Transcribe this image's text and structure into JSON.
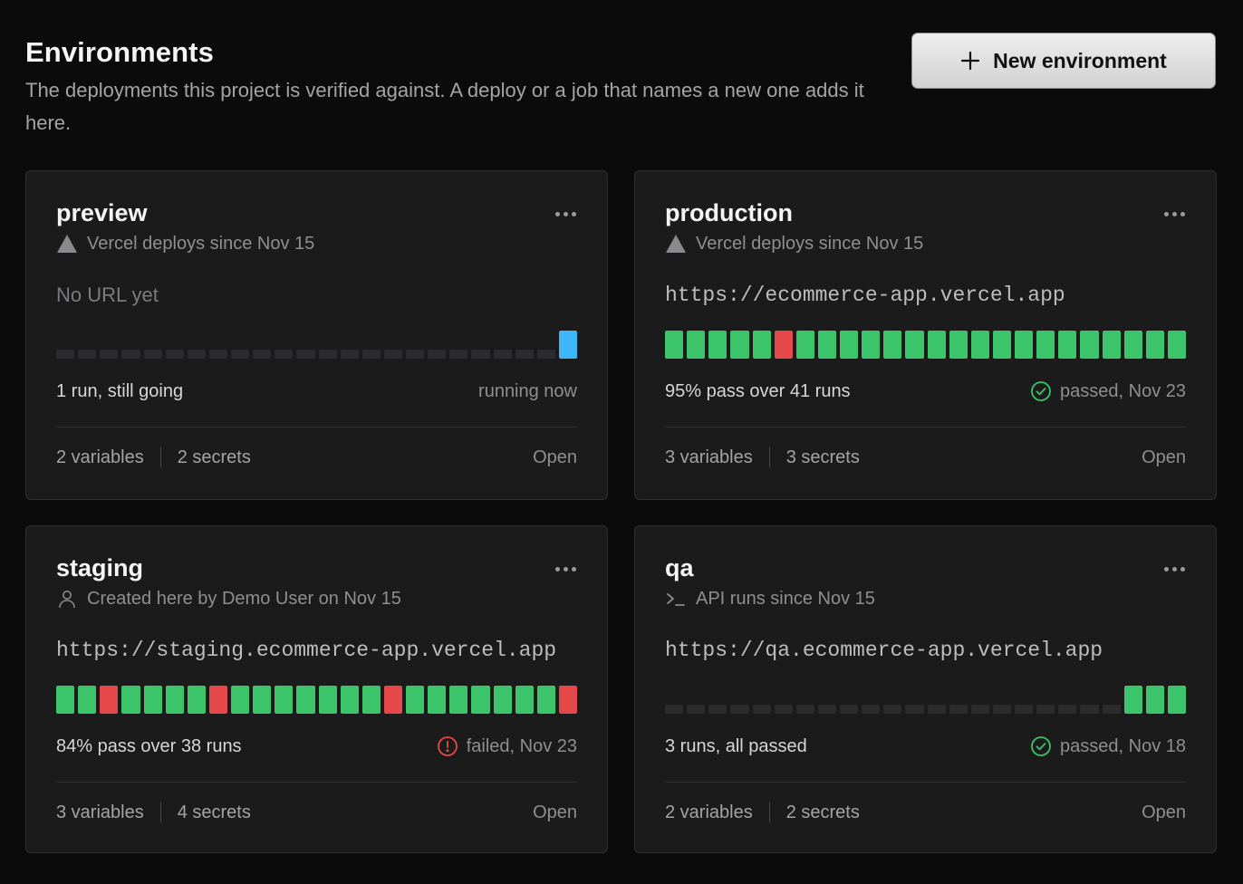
{
  "header": {
    "title": "Environments",
    "description": "The deployments this project is verified against. A deploy or a job that names a new one adds it here.",
    "new_button_label": "New environment"
  },
  "colors": {
    "pass": "#3cc46a",
    "fail": "#e54848",
    "running": "#3fb6f7",
    "empty": "#2c2c2e"
  },
  "environments": [
    {
      "name": "preview",
      "source_icon": "triangle-icon",
      "source_text": "Vercel deploys since Nov 15",
      "url": "No URL yet",
      "has_url": false,
      "runs": [
        "empty",
        "empty",
        "empty",
        "empty",
        "empty",
        "empty",
        "empty",
        "empty",
        "empty",
        "empty",
        "empty",
        "empty",
        "empty",
        "empty",
        "empty",
        "empty",
        "empty",
        "empty",
        "empty",
        "empty",
        "empty",
        "empty",
        "empty",
        "running"
      ],
      "summary": "1 run, still going",
      "status_icon": "",
      "status_text": "running now",
      "variables": "2 variables",
      "secrets": "2 secrets",
      "open_label": "Open"
    },
    {
      "name": "production",
      "source_icon": "triangle-icon",
      "source_text": "Vercel deploys since Nov 15",
      "url": "https://ecommerce-app.vercel.app",
      "has_url": true,
      "runs": [
        "pass",
        "pass",
        "pass",
        "pass",
        "pass",
        "fail",
        "pass",
        "pass",
        "pass",
        "pass",
        "pass",
        "pass",
        "pass",
        "pass",
        "pass",
        "pass",
        "pass",
        "pass",
        "pass",
        "pass",
        "pass",
        "pass",
        "pass",
        "pass"
      ],
      "summary": "95% pass over 41 runs",
      "status_icon": "check-circle-icon",
      "status_text": "passed, Nov 23",
      "variables": "3 variables",
      "secrets": "3 secrets",
      "open_label": "Open"
    },
    {
      "name": "staging",
      "source_icon": "user-icon",
      "source_text": "Created here by Demo User on Nov 15",
      "url": "https://staging.ecommerce-app.vercel.app",
      "has_url": true,
      "runs": [
        "pass",
        "pass",
        "fail",
        "pass",
        "pass",
        "pass",
        "pass",
        "fail",
        "pass",
        "pass",
        "pass",
        "pass",
        "pass",
        "pass",
        "pass",
        "fail",
        "pass",
        "pass",
        "pass",
        "pass",
        "pass",
        "pass",
        "pass",
        "fail"
      ],
      "summary": "84% pass over 38 runs",
      "status_icon": "alert-circle-icon",
      "status_text": "failed, Nov 23",
      "variables": "3 variables",
      "secrets": "4 secrets",
      "open_label": "Open"
    },
    {
      "name": "qa",
      "source_icon": "terminal-icon",
      "source_text": "API runs since Nov 15",
      "url": "https://qa.ecommerce-app.vercel.app",
      "has_url": true,
      "runs": [
        "empty",
        "empty",
        "empty",
        "empty",
        "empty",
        "empty",
        "empty",
        "empty",
        "empty",
        "empty",
        "empty",
        "empty",
        "empty",
        "empty",
        "empty",
        "empty",
        "empty",
        "empty",
        "empty",
        "empty",
        "empty",
        "pass",
        "pass",
        "pass"
      ],
      "summary": "3 runs, all passed",
      "status_icon": "check-circle-icon",
      "status_text": "passed, Nov 18",
      "variables": "2 variables",
      "secrets": "2 secrets",
      "open_label": "Open"
    }
  ]
}
